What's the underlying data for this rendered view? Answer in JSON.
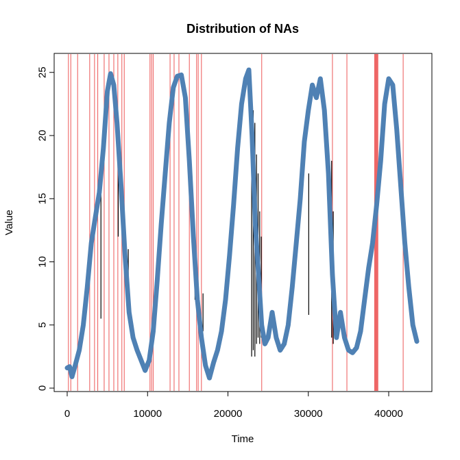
{
  "chart_data": {
    "type": "line",
    "title": "Distribution of NAs",
    "xlabel": "Time",
    "ylabel": "Value",
    "xlim": [
      0,
      44000
    ],
    "ylim": [
      0,
      25.5
    ],
    "x_ticks": [
      0,
      10000,
      20000,
      30000,
      40000
    ],
    "x_tick_labels": [
      "0",
      "10000",
      "20000",
      "30000",
      "40000"
    ],
    "y_ticks": [
      0,
      5,
      10,
      15,
      20,
      25
    ],
    "y_tick_labels": [
      "0",
      "5",
      "10",
      "15",
      "20",
      "25"
    ],
    "grid": false,
    "colors": {
      "series": "#4f81b4",
      "na_marker": "#ee6666",
      "gap_connector": "#000000"
    },
    "series": [
      {
        "points": [
          [
            0,
            1.6
          ],
          [
            300,
            1.7
          ],
          [
            600,
            0.9
          ],
          [
            1000,
            1.8
          ],
          [
            1500,
            3.0
          ],
          [
            2000,
            5.0
          ],
          [
            2500,
            8.0
          ],
          [
            3000,
            11.5
          ],
          [
            3500,
            13.5
          ],
          [
            4000,
            15.5
          ],
          [
            4500,
            19.0
          ],
          [
            5000,
            23.5
          ],
          [
            5400,
            24.9
          ],
          [
            5800,
            24.0
          ],
          [
            6200,
            21.0
          ],
          [
            6700,
            16.0
          ],
          [
            7200,
            10.5
          ],
          [
            7700,
            6.0
          ],
          [
            8200,
            4.0
          ],
          [
            8700,
            3.0
          ],
          [
            9200,
            2.2
          ],
          [
            9700,
            1.4
          ],
          [
            10200,
            2.2
          ],
          [
            10700,
            4.5
          ],
          [
            11200,
            8.5
          ],
          [
            11700,
            13.0
          ],
          [
            12200,
            17.0
          ],
          [
            12700,
            21.0
          ],
          [
            13200,
            23.8
          ],
          [
            13700,
            24.7
          ],
          [
            14200,
            24.8
          ],
          [
            14700,
            23.0
          ],
          [
            15200,
            18.0
          ],
          [
            15700,
            12.0
          ],
          [
            16200,
            7.0
          ],
          [
            16700,
            4.0
          ],
          [
            17200,
            1.8
          ],
          [
            17700,
            0.8
          ],
          [
            18200,
            2.0
          ],
          [
            18700,
            3.0
          ],
          [
            19200,
            4.5
          ],
          [
            19700,
            7.0
          ],
          [
            20200,
            10.5
          ],
          [
            20700,
            14.5
          ],
          [
            21200,
            19.0
          ],
          [
            21700,
            22.5
          ],
          [
            22200,
            24.5
          ],
          [
            22600,
            25.2
          ],
          [
            23000,
            20.0
          ],
          [
            23400,
            13.0
          ],
          [
            23800,
            9.0
          ],
          [
            24200,
            5.0
          ],
          [
            24600,
            3.5
          ],
          [
            25000,
            4.0
          ],
          [
            25500,
            6.0
          ],
          [
            26000,
            4.0
          ],
          [
            26500,
            3.0
          ],
          [
            27000,
            3.5
          ],
          [
            27500,
            5.0
          ],
          [
            28000,
            8.0
          ],
          [
            28500,
            11.5
          ],
          [
            29000,
            15.0
          ],
          [
            29500,
            19.5
          ],
          [
            30000,
            22.0
          ],
          [
            30500,
            24.0
          ],
          [
            31000,
            23.0
          ],
          [
            31500,
            24.5
          ],
          [
            32000,
            22.0
          ],
          [
            32500,
            17.0
          ],
          [
            33000,
            9.0
          ],
          [
            33500,
            4.0
          ],
          [
            34000,
            6.0
          ],
          [
            34500,
            4.0
          ],
          [
            35000,
            3.0
          ],
          [
            35500,
            2.8
          ],
          [
            36000,
            3.2
          ],
          [
            36500,
            4.5
          ],
          [
            37000,
            7.0
          ],
          [
            37500,
            9.5
          ],
          [
            38000,
            11.5
          ],
          [
            38500,
            14.5
          ],
          [
            39000,
            18.0
          ],
          [
            39500,
            22.5
          ],
          [
            40000,
            24.5
          ],
          [
            40500,
            24.0
          ],
          [
            41000,
            20.5
          ],
          [
            41500,
            16.0
          ],
          [
            42000,
            11.5
          ],
          [
            42500,
            8.0
          ],
          [
            43000,
            5.0
          ],
          [
            43500,
            3.7
          ]
        ]
      }
    ],
    "na_positions": [
      150,
      450,
      1300,
      2800,
      3400,
      3800,
      4600,
      5200,
      5800,
      6300,
      6800,
      7100,
      10300,
      10500,
      10700,
      12800,
      13300,
      13900,
      15200,
      16100,
      16300,
      16700,
      24200,
      33000,
      34800,
      41800
    ],
    "na_bands": [
      [
        38200,
        38700
      ]
    ],
    "gap_connectors": [
      {
        "x": 4200,
        "y_from": 5.5,
        "y_to": 16.5
      },
      {
        "x": 6350,
        "y_from": 12.0,
        "y_to": 21.0
      },
      {
        "x": 7600,
        "y_from": 7.0,
        "y_to": 11.0
      },
      {
        "x": 15900,
        "y_from": 7.0,
        "y_to": 11.5
      },
      {
        "x": 16900,
        "y_from": 4.5,
        "y_to": 7.5
      },
      {
        "x": 22950,
        "y_from": 2.5,
        "y_to": 23.0
      },
      {
        "x": 23150,
        "y_from": 3.0,
        "y_to": 22.0
      },
      {
        "x": 23350,
        "y_from": 2.5,
        "y_to": 21.0
      },
      {
        "x": 23550,
        "y_from": 3.5,
        "y_to": 18.5
      },
      {
        "x": 23750,
        "y_from": 4.0,
        "y_to": 17.0
      },
      {
        "x": 23950,
        "y_from": 3.5,
        "y_to": 14.0
      },
      {
        "x": 24150,
        "y_from": 4.0,
        "y_to": 12.0
      },
      {
        "x": 30050,
        "y_from": 5.8,
        "y_to": 17.0
      },
      {
        "x": 32900,
        "y_from": 4.0,
        "y_to": 18.0
      },
      {
        "x": 33100,
        "y_from": 3.5,
        "y_to": 14.0
      }
    ]
  }
}
